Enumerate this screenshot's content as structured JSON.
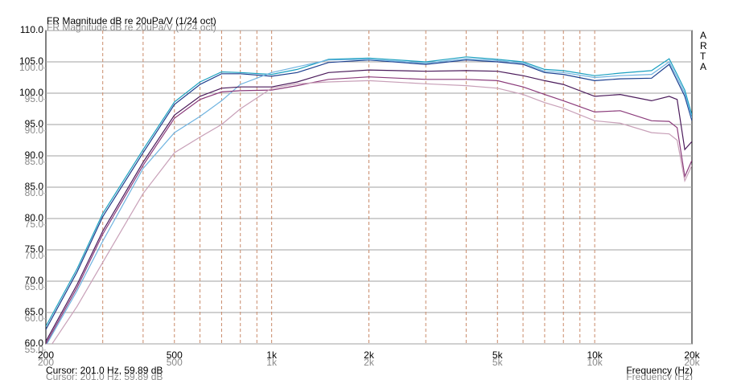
{
  "chart_data": {
    "type": "line",
    "title": "FR Magnitude dB re 20uPa/V (1/24 oct)",
    "brand": "ARTA",
    "cursor": "Cursor: 201.0 Hz, 59.89 dB",
    "x_label": "Frequency (Hz)",
    "log_x": true,
    "grid": true,
    "xlim": [
      200,
      20000
    ],
    "xticks": [
      200,
      500,
      {
        "value": 1000,
        "label": "1k"
      },
      {
        "value": 2000,
        "label": "2k"
      },
      {
        "value": 5000,
        "label": "5k"
      },
      {
        "value": 10000,
        "label": "10k"
      },
      {
        "value": 20000,
        "label": "20k"
      }
    ],
    "minor_xticks": [
      300,
      400,
      600,
      700,
      800,
      900,
      3000,
      4000,
      6000,
      7000,
      8000,
      9000
    ],
    "ylim": [
      60,
      110
    ],
    "yticks": [
      {
        "value": 60,
        "label": "60.0"
      },
      {
        "value": 65,
        "label": "65.0"
      },
      {
        "value": 70,
        "label": "70.0"
      },
      {
        "value": 75,
        "label": "75.0"
      },
      {
        "value": 80,
        "label": "80.0"
      },
      {
        "value": 85,
        "label": "85.0"
      },
      {
        "value": 90,
        "label": "90.0"
      },
      {
        "value": 95,
        "label": "95.0"
      },
      {
        "value": 100,
        "label": "100.0"
      },
      {
        "value": 105,
        "label": "105.0"
      },
      {
        "value": 110,
        "label": "110.0"
      }
    ],
    "y2lim": [
      56,
      106
    ],
    "y2ticks": [
      {
        "value": 55,
        "label": "55.0"
      },
      {
        "value": 60,
        "label": "60.0"
      },
      {
        "value": 65,
        "label": "65.0"
      },
      {
        "value": 70,
        "label": "70.0"
      },
      {
        "value": 75,
        "label": "75.0"
      },
      {
        "value": 80,
        "label": "80.0"
      },
      {
        "value": 85,
        "label": "85.0"
      },
      {
        "value": 90,
        "label": "90.0"
      },
      {
        "value": 95,
        "label": "95.0"
      },
      {
        "value": 100,
        "label": "100.0"
      }
    ],
    "x": [
      200,
      250,
      300,
      400,
      500,
      600,
      700,
      800,
      1000,
      1200,
      1500,
      2000,
      3000,
      4000,
      5000,
      6000,
      7000,
      8000,
      10000,
      12000,
      15000,
      17000,
      18000,
      19000,
      20000
    ],
    "series": [
      {
        "color": "#1c3f8f",
        "values": [
          62.3,
          71.5,
          80.3,
          90.5,
          98.2,
          101.4,
          103.1,
          103.1,
          102.7,
          103.3,
          104.9,
          105.3,
          104.6,
          105.3,
          105.0,
          104.6,
          103.3,
          103.0,
          102.0,
          102.3,
          102.4,
          104.6,
          102.0,
          99.5,
          95.6
        ]
      },
      {
        "color": "#1aa0c0",
        "values": [
          62.8,
          72.0,
          80.8,
          91.0,
          98.6,
          101.8,
          103.4,
          103.3,
          103.0,
          103.8,
          105.4,
          105.6,
          105.0,
          105.8,
          105.4,
          105.0,
          103.8,
          103.6,
          102.8,
          103.2,
          103.6,
          105.5,
          103.0,
          100.5,
          96.5
        ]
      },
      {
        "color": "#6fb3e0",
        "values": [
          59.7,
          68.5,
          76.4,
          88.0,
          93.7,
          96.3,
          98.8,
          101.4,
          103.3,
          104.2,
          105.3,
          105.4,
          104.8,
          105.5,
          105.2,
          104.8,
          103.5,
          103.3,
          102.5,
          102.8,
          103.0,
          105.0,
          102.5,
          100.0,
          96.0
        ]
      },
      {
        "color": "#4a1a5a",
        "values": [
          60.4,
          69.5,
          78.0,
          89.0,
          96.5,
          99.5,
          100.8,
          101.0,
          101.0,
          101.8,
          103.3,
          103.7,
          103.5,
          103.6,
          103.5,
          102.8,
          102.0,
          101.4,
          99.5,
          99.8,
          98.8,
          99.5,
          99.0,
          91.0,
          92.3
        ]
      },
      {
        "color": "#8a3a7a",
        "values": [
          60.0,
          69.0,
          77.5,
          88.5,
          96.0,
          99.0,
          100.2,
          100.4,
          100.5,
          101.2,
          102.2,
          102.6,
          102.2,
          102.2,
          102.0,
          101.0,
          99.8,
          98.8,
          97.0,
          97.2,
          95.6,
          95.5,
          94.5,
          86.7,
          89.3
        ]
      },
      {
        "color": "#c8a0b8",
        "values": [
          58.5,
          66.0,
          73.0,
          84.0,
          90.5,
          93.0,
          95.0,
          97.5,
          100.8,
          101.5,
          101.8,
          102.0,
          101.5,
          101.2,
          100.8,
          99.8,
          98.5,
          97.6,
          95.6,
          95.2,
          93.7,
          93.5,
          92.5,
          86.0,
          88.5
        ]
      }
    ]
  }
}
